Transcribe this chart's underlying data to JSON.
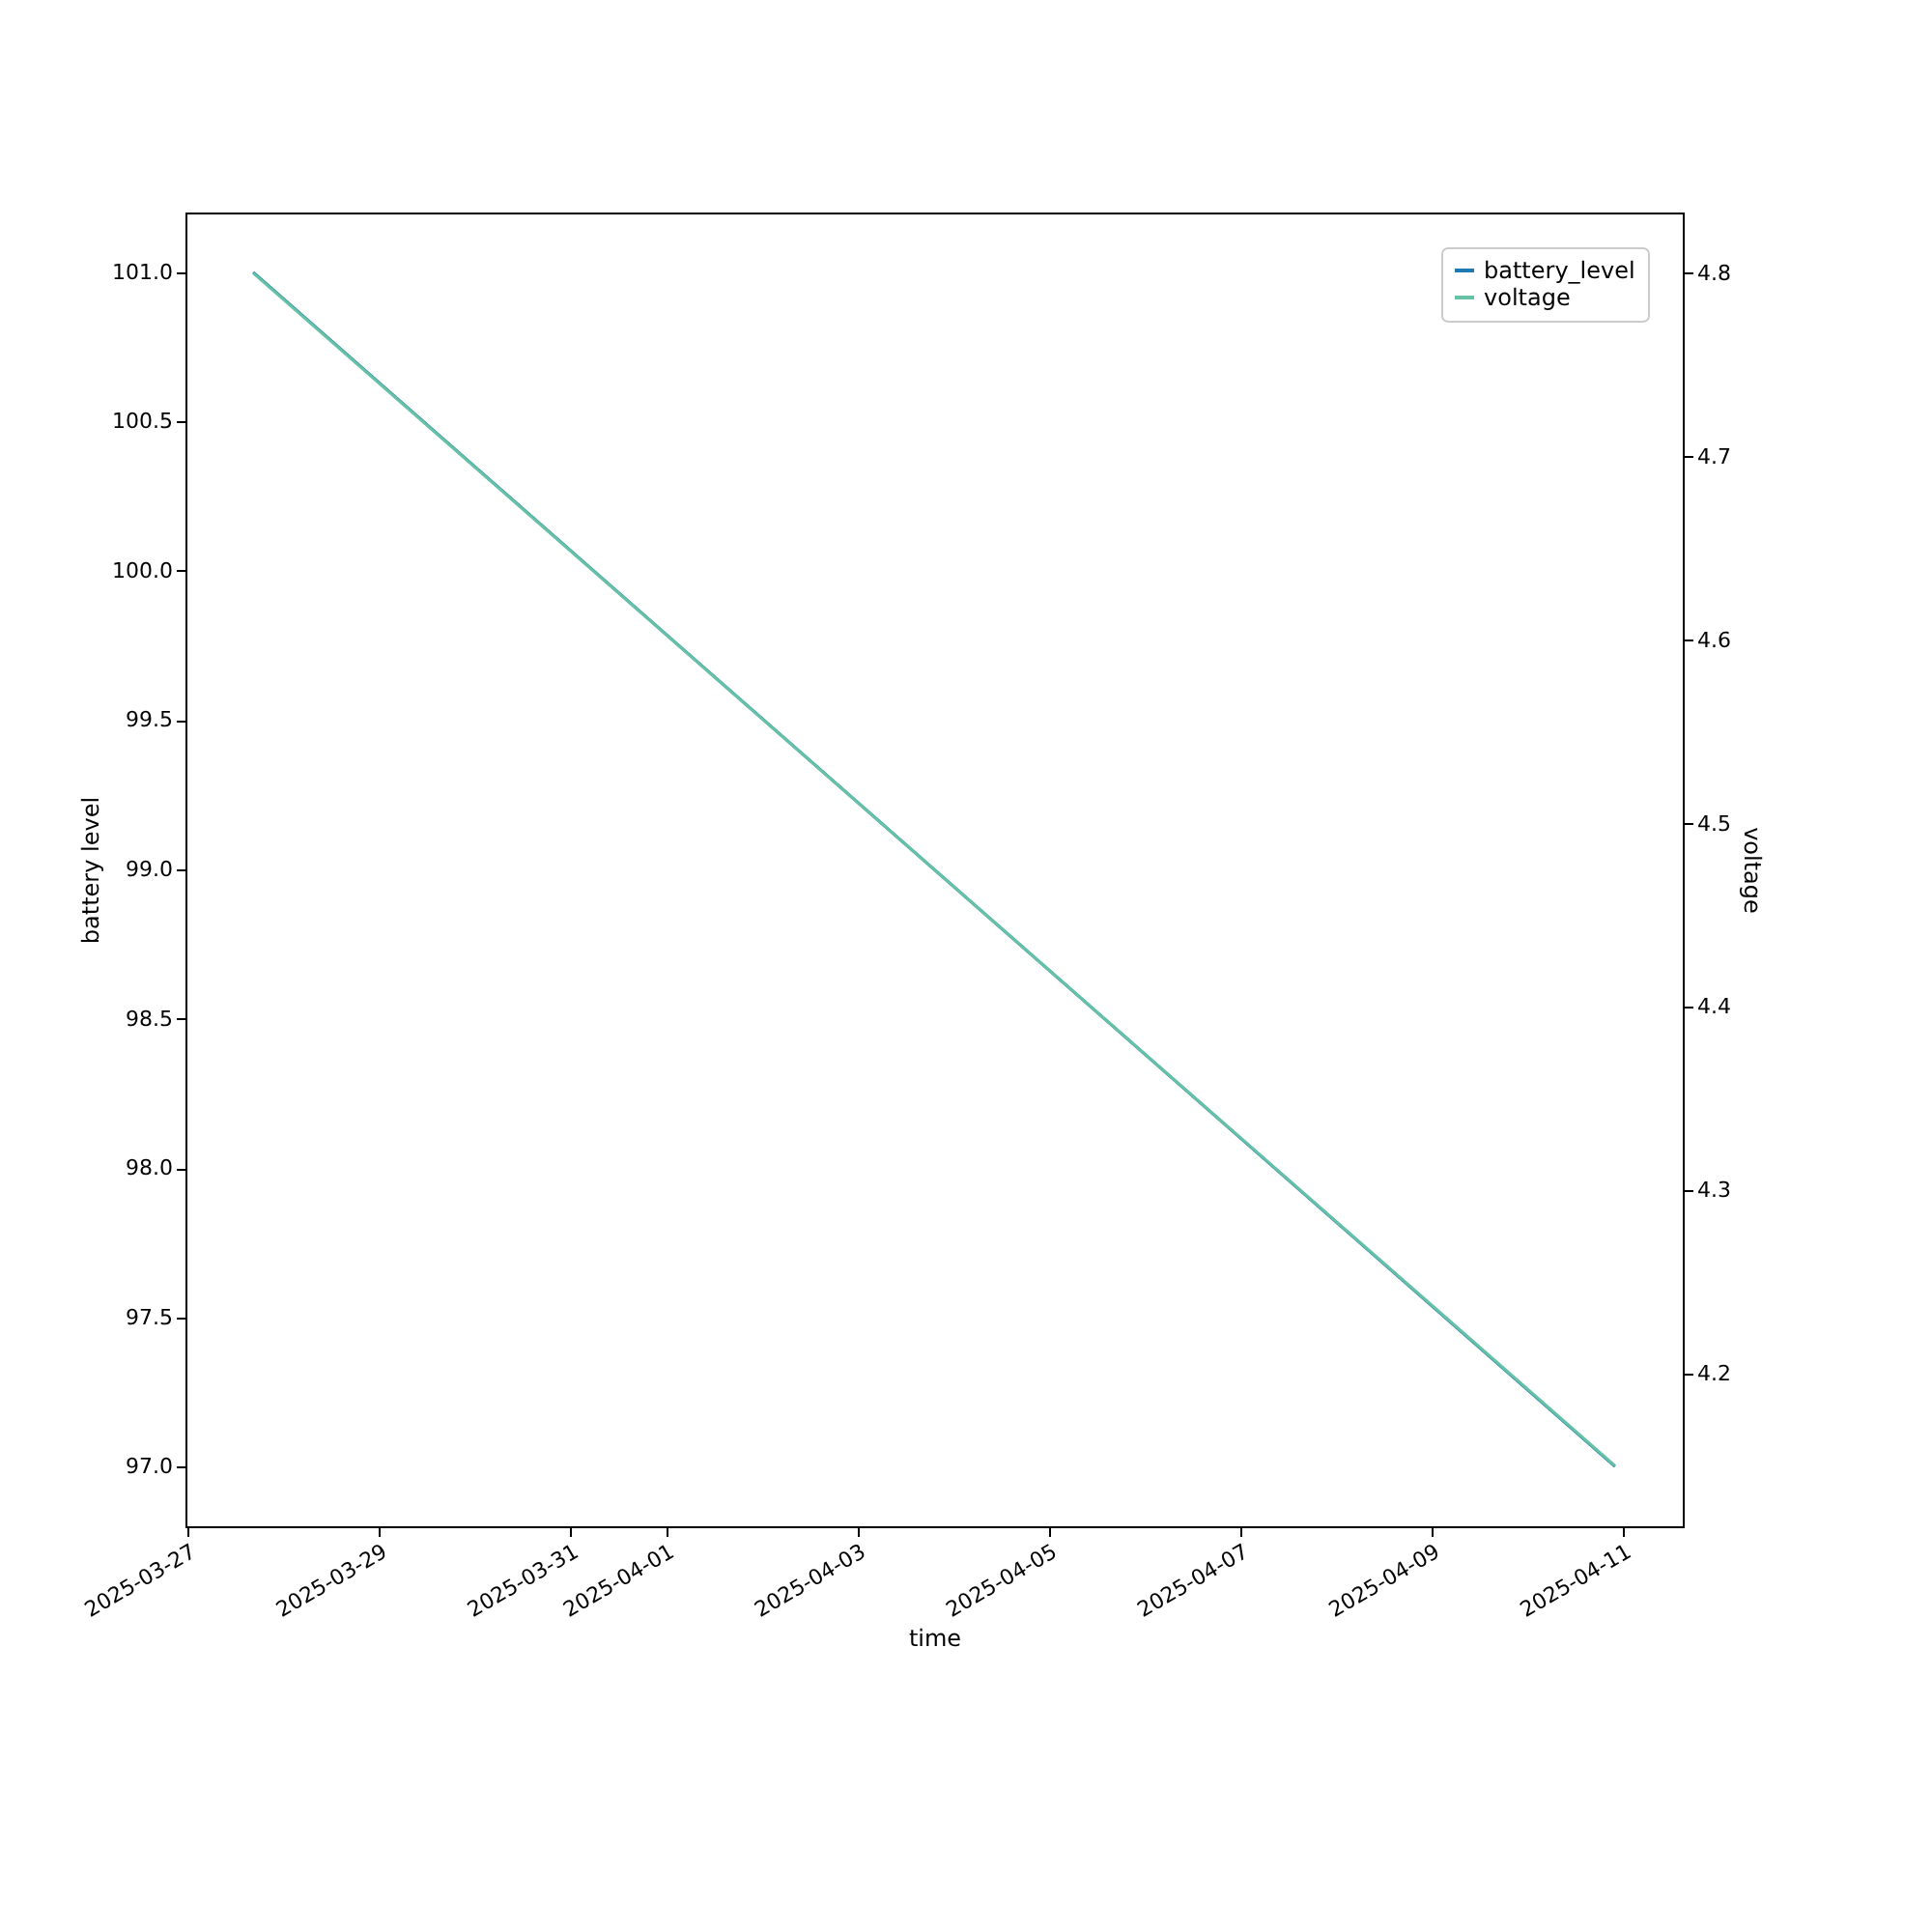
{
  "chart_data": {
    "type": "line",
    "xlabel": "time",
    "ylabel": "battery level",
    "y2label": "voltage",
    "x": [
      "2025-03-27T16:30",
      "2025-04-10T22:00"
    ],
    "series": [
      {
        "name": "battery_level",
        "color": "#1f77b4",
        "values": [
          101.0,
          97.0
        ]
      },
      {
        "name": "voltage",
        "color": "#66c2a5",
        "values": [
          4.8,
          4.15
        ],
        "axis": "y2"
      }
    ],
    "xlim": [
      "2025-03-26T23:30",
      "2025-04-11T15:00"
    ],
    "xticks": [
      "2025-03-27",
      "2025-03-29",
      "2025-03-31",
      "2025-04-01",
      "2025-04-03",
      "2025-04-05",
      "2025-04-07",
      "2025-04-09",
      "2025-04-11"
    ],
    "ylim": [
      96.8,
      101.2
    ],
    "yticks": [
      {
        "value": 97,
        "label": "97.0"
      },
      {
        "value": 97.5,
        "label": "97.5"
      },
      {
        "value": 98,
        "label": "98.0"
      },
      {
        "value": 98.5,
        "label": "98.5"
      },
      {
        "value": 99,
        "label": "99.0"
      },
      {
        "value": 99.5,
        "label": "99.5"
      },
      {
        "value": 100,
        "label": "100.0"
      },
      {
        "value": 100.5,
        "label": "100.5"
      },
      {
        "value": 101,
        "label": "101.0"
      }
    ],
    "y2lim": [
      4.117,
      4.833
    ],
    "y2ticks": [
      4.2,
      4.3,
      4.4,
      4.5,
      4.6,
      4.7,
      4.8
    ],
    "grid": false,
    "legend": "top right",
    "line_style": "solid",
    "marker": "none"
  }
}
